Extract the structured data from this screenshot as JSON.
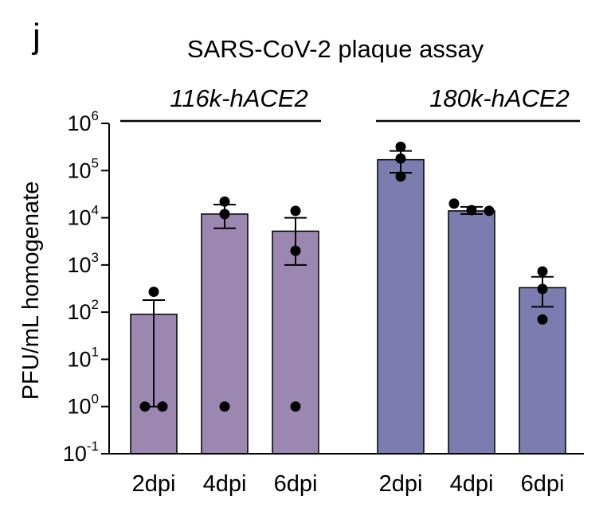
{
  "panel_letter": "j",
  "chart_data": {
    "type": "bar",
    "title": "SARS-CoV-2 plaque assay",
    "ylabel": "PFU/mL homogenate",
    "xlabel": "",
    "yscale": "log",
    "ylim": [
      0.1,
      1000000
    ],
    "yticks": [
      {
        "base": "10",
        "exp": "-1",
        "value": 0.1
      },
      {
        "base": "10",
        "exp": "0",
        "value": 1
      },
      {
        "base": "10",
        "exp": "1",
        "value": 10
      },
      {
        "base": "10",
        "exp": "2",
        "value": 100
      },
      {
        "base": "10",
        "exp": "3",
        "value": 1000
      },
      {
        "base": "10",
        "exp": "4",
        "value": 10000
      },
      {
        "base": "10",
        "exp": "5",
        "value": 100000
      },
      {
        "base": "10",
        "exp": "6",
        "value": 1000000
      }
    ],
    "grid": false,
    "groups": [
      {
        "name": "116k-hACE2",
        "color": "#9c87b0",
        "bars": [
          {
            "category": "2dpi",
            "value": 90,
            "error_upper": 180,
            "error_lower": 1,
            "points": [
              270,
              1,
              1
            ]
          },
          {
            "category": "4dpi",
            "value": 12000,
            "error_upper": 19000,
            "error_lower": 6000,
            "points": [
              22000,
              12000,
              1
            ]
          },
          {
            "category": "6dpi",
            "value": 5200,
            "error_upper": 10000,
            "error_lower": 1000,
            "points": [
              14000,
              2000,
              1
            ]
          }
        ]
      },
      {
        "name": "180k-hACE2",
        "color": "#7c7cb1",
        "bars": [
          {
            "category": "2dpi",
            "value": 170000,
            "error_upper": 260000,
            "error_lower": 90000,
            "points": [
              320000,
              180000,
              75000
            ]
          },
          {
            "category": "4dpi",
            "value": 14000,
            "error_upper": 17000,
            "error_lower": 12000,
            "points": [
              20000,
              14500,
              14000
            ]
          },
          {
            "category": "6dpi",
            "value": 330,
            "error_upper": 560,
            "error_lower": 130,
            "points": [
              730,
              310,
              70
            ]
          }
        ]
      }
    ]
  }
}
